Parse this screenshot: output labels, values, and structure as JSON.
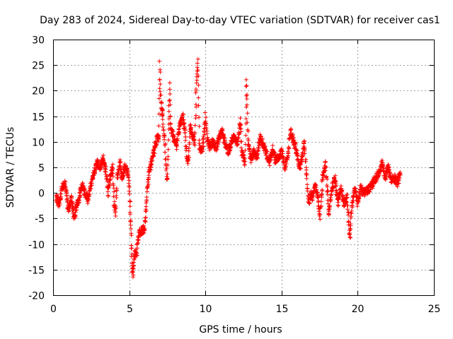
{
  "chart_data": {
    "type": "scatter",
    "title": "Day 283 of 2024, Sidereal Day-to-day VTEC variation (SDTVAR) for receiver cas1",
    "xlabel": "GPS time / hours",
    "ylabel": "SDTVAR / TECUs",
    "xlim": [
      0,
      25
    ],
    "ylim": [
      -20,
      30
    ],
    "xticks": [
      0,
      5,
      10,
      15,
      20,
      25
    ],
    "yticks": [
      -20,
      -15,
      -10,
      -5,
      0,
      5,
      10,
      15,
      20,
      25,
      30
    ],
    "grid": true,
    "marker": "+",
    "color": "#ff0000",
    "series": [
      {
        "name": "SDTVAR",
        "anchors": [
          [
            0.2,
            -1
          ],
          [
            0.4,
            -2
          ],
          [
            0.6,
            1
          ],
          [
            0.8,
            2
          ],
          [
            1.0,
            -3.5
          ],
          [
            1.2,
            -1
          ],
          [
            1.4,
            -5
          ],
          [
            1.5,
            -3
          ],
          [
            1.7,
            -1
          ],
          [
            1.9,
            1.5
          ],
          [
            2.1,
            0
          ],
          [
            2.3,
            -1.5
          ],
          [
            2.5,
            2
          ],
          [
            2.7,
            4
          ],
          [
            2.9,
            6
          ],
          [
            3.1,
            5
          ],
          [
            3.3,
            7
          ],
          [
            3.5,
            3.5
          ],
          [
            3.6,
            0
          ],
          [
            3.7,
            2
          ],
          [
            3.9,
            5
          ],
          [
            4.0,
            -2
          ],
          [
            4.1,
            -4
          ],
          [
            4.2,
            3
          ],
          [
            4.4,
            6
          ],
          [
            4.5,
            3
          ],
          [
            4.7,
            5
          ],
          [
            4.9,
            4
          ],
          [
            5.0,
            1
          ],
          [
            5.05,
            -3
          ],
          [
            5.1,
            -7
          ],
          [
            5.15,
            -11
          ],
          [
            5.2,
            -15
          ],
          [
            5.25,
            -16
          ],
          [
            5.35,
            -12
          ],
          [
            5.5,
            -11.5
          ],
          [
            5.6,
            -8
          ],
          [
            5.8,
            -7.5
          ],
          [
            6.0,
            -7
          ],
          [
            6.2,
            1
          ],
          [
            6.3,
            4
          ],
          [
            6.8,
            10.5
          ],
          [
            6.95,
            11
          ],
          [
            7.0,
            25
          ],
          [
            7.05,
            19
          ],
          [
            7.15,
            16
          ],
          [
            7.2,
            15
          ],
          [
            7.5,
            2
          ],
          [
            7.65,
            21.5
          ],
          [
            7.7,
            13
          ],
          [
            7.9,
            11
          ],
          [
            8.1,
            9
          ],
          [
            8.3,
            13
          ],
          [
            8.5,
            15
          ],
          [
            8.7,
            11
          ],
          [
            8.8,
            6
          ],
          [
            8.9,
            7
          ],
          [
            9.0,
            13
          ],
          [
            9.2,
            11
          ],
          [
            9.3,
            10
          ],
          [
            9.4,
            20
          ],
          [
            9.5,
            26
          ],
          [
            9.6,
            9
          ],
          [
            9.8,
            8
          ],
          [
            10.0,
            15
          ],
          [
            10.1,
            11
          ],
          [
            10.3,
            9
          ],
          [
            10.5,
            10
          ],
          [
            10.7,
            8.5
          ],
          [
            10.9,
            11
          ],
          [
            11.1,
            12
          ],
          [
            11.3,
            9.5
          ],
          [
            11.5,
            8
          ],
          [
            11.7,
            10
          ],
          [
            11.9,
            11
          ],
          [
            12.1,
            9.5
          ],
          [
            12.3,
            14
          ],
          [
            12.4,
            8
          ],
          [
            12.6,
            6
          ],
          [
            12.7,
            22
          ],
          [
            12.8,
            10
          ],
          [
            13.0,
            6.5
          ],
          [
            13.2,
            8
          ],
          [
            13.4,
            7
          ],
          [
            13.6,
            11
          ],
          [
            14.2,
            6
          ],
          [
            14.4,
            8.5
          ],
          [
            14.6,
            6.5
          ],
          [
            14.8,
            7
          ],
          [
            15.0,
            8
          ],
          [
            15.2,
            5
          ],
          [
            15.4,
            7
          ],
          [
            15.6,
            12
          ],
          [
            15.8,
            10
          ],
          [
            15.9,
            9
          ],
          [
            16.2,
            5
          ],
          [
            16.4,
            8
          ],
          [
            16.5,
            10
          ],
          [
            16.6,
            5
          ],
          [
            16.7,
            1
          ],
          [
            16.8,
            -2
          ],
          [
            16.9,
            0
          ],
          [
            17.0,
            -1
          ],
          [
            17.2,
            2
          ],
          [
            17.4,
            -1
          ],
          [
            17.5,
            -5
          ],
          [
            17.7,
            3
          ],
          [
            17.9,
            5.5
          ],
          [
            18.1,
            -4
          ],
          [
            18.3,
            1
          ],
          [
            18.5,
            3
          ],
          [
            18.7,
            -2
          ],
          [
            18.9,
            1
          ],
          [
            19.1,
            -2
          ],
          [
            19.3,
            -1
          ],
          [
            19.5,
            -9
          ],
          [
            19.6,
            -3
          ],
          [
            19.8,
            1
          ],
          [
            20.0,
            -2
          ],
          [
            20.2,
            1
          ],
          [
            20.4,
            0
          ],
          [
            20.6,
            0.5
          ],
          [
            20.8,
            1
          ],
          [
            21.0,
            2
          ],
          [
            21.2,
            3
          ],
          [
            21.4,
            4
          ],
          [
            21.6,
            6
          ],
          [
            21.8,
            3
          ],
          [
            22.0,
            5
          ],
          [
            22.2,
            2.5
          ],
          [
            22.4,
            3
          ],
          [
            22.6,
            2
          ],
          [
            22.8,
            3.5
          ]
        ]
      }
    ]
  }
}
